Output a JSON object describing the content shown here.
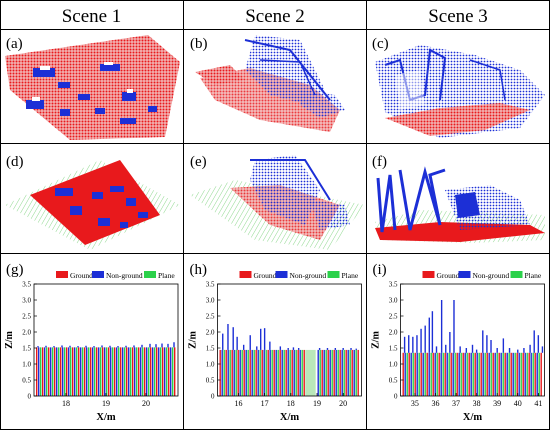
{
  "columns": [
    "Scene 1",
    "Scene 2",
    "Scene 3"
  ],
  "panel_letters": [
    "(a)",
    "(b)",
    "(c)",
    "(d)",
    "(e)",
    "(f)",
    "(g)",
    "(h)",
    "(i)"
  ],
  "colors": {
    "ground": "#e8191c",
    "non_ground": "#1c2fd6",
    "plane": "#2bd14a",
    "pale_green": "#b9e7b9"
  },
  "chart_data": [
    {
      "type": "bar",
      "panel": "(g)",
      "legend": [
        "Ground",
        "Non-ground",
        "Plane"
      ],
      "legend_position": "top",
      "xlabel": "X/m",
      "ylabel": "Z/m",
      "ylim": [
        0,
        3.5
      ],
      "yticks": [
        "0",
        "0.5",
        "1.0",
        "1.5",
        "2.0",
        "2.5",
        "3.0",
        "3.5"
      ],
      "xlim": [
        17.2,
        20.8
      ],
      "xticks": [
        "18",
        "19",
        "20"
      ],
      "plane_level": 1.52,
      "ground_level": 1.52,
      "nonground_spikes": [
        [
          17.3,
          1.56
        ],
        [
          17.5,
          1.57
        ],
        [
          17.7,
          1.56
        ],
        [
          17.9,
          1.58
        ],
        [
          18.1,
          1.57
        ],
        [
          18.3,
          1.56
        ],
        [
          18.5,
          1.57
        ],
        [
          18.7,
          1.56
        ],
        [
          18.9,
          1.58
        ],
        [
          19.1,
          1.57
        ],
        [
          19.3,
          1.56
        ],
        [
          19.5,
          1.57
        ],
        [
          19.7,
          1.58
        ],
        [
          19.9,
          1.6
        ],
        [
          20.1,
          1.63
        ],
        [
          20.25,
          1.62
        ],
        [
          20.4,
          1.64
        ],
        [
          20.55,
          1.63
        ],
        [
          20.7,
          1.68
        ]
      ]
    },
    {
      "type": "bar",
      "panel": "(h)",
      "legend": [
        "Ground",
        "Non-ground",
        "Plane"
      ],
      "legend_position": "top",
      "xlabel": "X/m",
      "ylabel": "Z/m",
      "ylim": [
        0,
        3.5
      ],
      "yticks": [
        "0",
        "0.5",
        "1.0",
        "1.5",
        "2.0",
        "2.5",
        "3.0",
        "3.5"
      ],
      "xlim": [
        15.2,
        20.7
      ],
      "xticks": [
        "16",
        "17",
        "18",
        "19",
        "20"
      ],
      "plane_level": 1.44,
      "ground_level": 1.44,
      "gap_x": [
        18.55,
        18.95
      ],
      "nonground_spikes": [
        [
          15.4,
          1.95
        ],
        [
          15.6,
          2.25
        ],
        [
          15.8,
          2.15
        ],
        [
          15.95,
          1.85
        ],
        [
          16.2,
          1.6
        ],
        [
          16.45,
          1.9
        ],
        [
          16.7,
          1.55
        ],
        [
          16.85,
          2.1
        ],
        [
          17.0,
          2.12
        ],
        [
          17.2,
          1.7
        ],
        [
          17.6,
          1.55
        ],
        [
          17.9,
          1.5
        ],
        [
          18.1,
          1.52
        ],
        [
          18.3,
          1.5
        ],
        [
          19.1,
          1.5
        ],
        [
          19.4,
          1.5
        ],
        [
          19.7,
          1.5
        ],
        [
          20.0,
          1.5
        ],
        [
          20.3,
          1.5
        ],
        [
          20.5,
          1.48
        ]
      ]
    },
    {
      "type": "bar",
      "panel": "(i)",
      "legend": [
        "Ground",
        "Non-ground",
        "Plane"
      ],
      "legend_position": "top",
      "xlabel": "X/m",
      "ylabel": "Z/m",
      "ylim": [
        0,
        3.5
      ],
      "yticks": [
        "0",
        "0.5",
        "1.0",
        "1.5",
        "2.0",
        "2.5",
        "3.0",
        "3.5"
      ],
      "xlim": [
        34.3,
        41.3
      ],
      "xticks": [
        "35",
        "36",
        "37",
        "38",
        "39",
        "40",
        "41"
      ],
      "plane_level": 1.35,
      "ground_level": 1.35,
      "nonground_spikes": [
        [
          34.5,
          1.85
        ],
        [
          34.7,
          1.9
        ],
        [
          34.9,
          1.85
        ],
        [
          35.1,
          1.9
        ],
        [
          35.3,
          2.1
        ],
        [
          35.5,
          2.2
        ],
        [
          35.7,
          2.45
        ],
        [
          35.85,
          2.65
        ],
        [
          36.05,
          1.55
        ],
        [
          36.3,
          3.0
        ],
        [
          36.5,
          1.6
        ],
        [
          36.7,
          2.0
        ],
        [
          36.9,
          3.0
        ],
        [
          37.2,
          1.55
        ],
        [
          37.5,
          1.5
        ],
        [
          37.8,
          1.6
        ],
        [
          38.0,
          1.45
        ],
        [
          38.3,
          2.05
        ],
        [
          38.5,
          1.9
        ],
        [
          38.7,
          1.75
        ],
        [
          39.0,
          1.5
        ],
        [
          39.3,
          1.8
        ],
        [
          39.6,
          1.5
        ],
        [
          40.0,
          1.45
        ],
        [
          40.3,
          1.5
        ],
        [
          40.6,
          1.6
        ],
        [
          40.8,
          2.05
        ],
        [
          41.0,
          1.9
        ],
        [
          41.2,
          1.55
        ]
      ]
    }
  ]
}
